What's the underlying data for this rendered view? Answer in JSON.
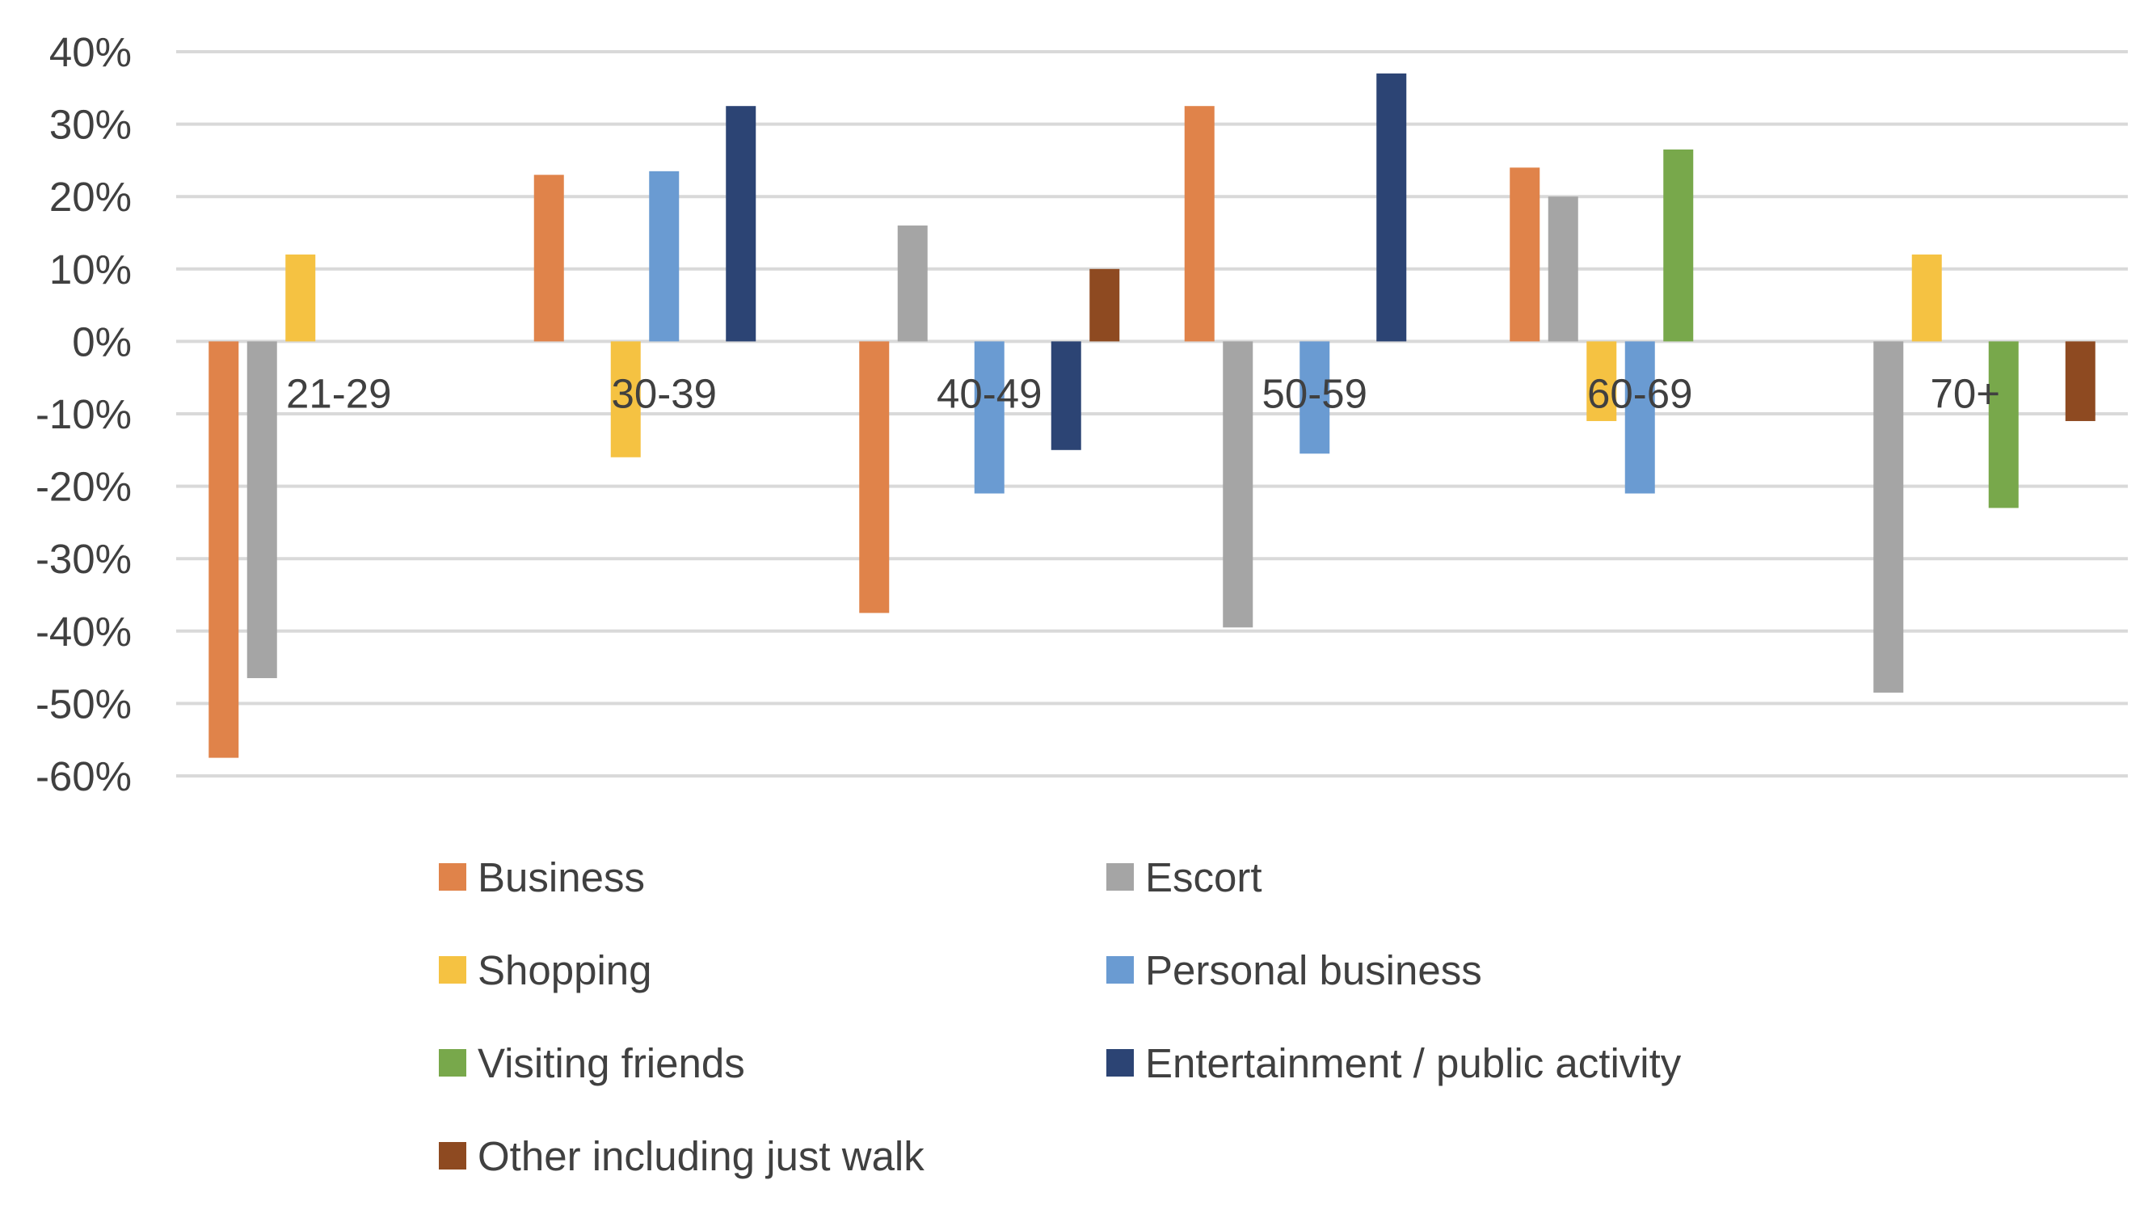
{
  "chart_data": {
    "type": "bar",
    "title": "",
    "xlabel": "",
    "ylabel": "",
    "ylim": [
      -60,
      40
    ],
    "y_ticks": [
      40,
      30,
      20,
      10,
      0,
      -10,
      -20,
      -30,
      -40,
      -50,
      -60
    ],
    "y_tick_labels": [
      "40%",
      "30%",
      "20%",
      "10%",
      "0%",
      "-10%",
      "-20%",
      "-30%",
      "-40%",
      "-50%",
      "-60%"
    ],
    "grid": true,
    "legend_position": "bottom",
    "categories": [
      "21-29",
      "30-39",
      "40-49",
      "50-59",
      "60-69",
      "70+"
    ],
    "series": [
      {
        "name": "Business",
        "color": "#E0834A",
        "values": [
          -57.5,
          23,
          -37.5,
          32.5,
          24,
          null
        ]
      },
      {
        "name": "Escort",
        "color": "#A5A5A5",
        "values": [
          -46.5,
          null,
          16,
          -39.5,
          20,
          -48.5
        ]
      },
      {
        "name": "Shopping",
        "color": "#F5C242",
        "values": [
          12,
          -16,
          null,
          null,
          -11,
          12
        ]
      },
      {
        "name": "Personal business",
        "color": "#6A9BD2",
        "values": [
          null,
          23.5,
          -21,
          -15.5,
          -21,
          null
        ]
      },
      {
        "name": "Visiting friends",
        "color": "#78A84B",
        "values": [
          null,
          null,
          null,
          null,
          26.5,
          -23
        ]
      },
      {
        "name": "Entertainment / public activity",
        "color": "#2C4474",
        "values": [
          null,
          32.5,
          -15,
          37,
          null,
          null
        ]
      },
      {
        "name": "Other including just walk",
        "color": "#8E4A21",
        "values": [
          null,
          null,
          10,
          null,
          null,
          -11
        ]
      }
    ]
  }
}
